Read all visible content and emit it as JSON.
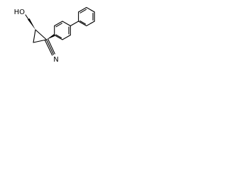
{
  "atoms": {
    "hydroxyl": "HO",
    "nitrile_nitrogen": "N"
  }
}
